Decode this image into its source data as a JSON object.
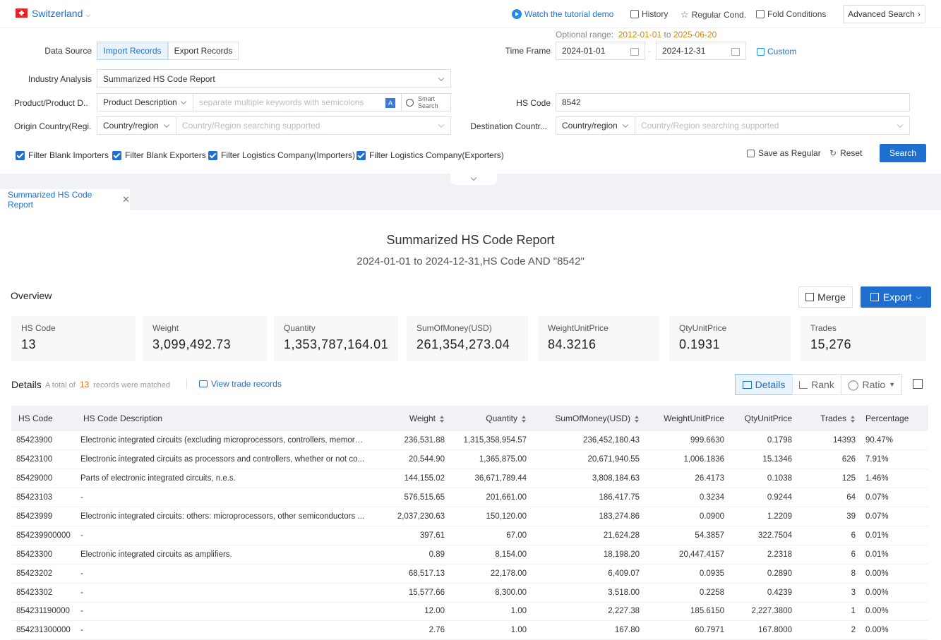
{
  "header": {
    "country": "Switzerland",
    "watch_demo": "Watch the tutorial demo",
    "history": "History",
    "regular_cond": "Regular Cond.",
    "fold_conditions": "Fold Conditions",
    "advanced_search": "Advanced Search"
  },
  "form": {
    "optional_range_label": "Optional range",
    "optional_range_start": "2012-01-01",
    "optional_range_to": "to",
    "optional_range_end": "2025-06-20",
    "data_source_label": "Data Source",
    "import_records": "Import Records",
    "export_records": "Export Records",
    "time_frame_label": "Time Frame",
    "date_start": "2024-01-01",
    "date_end": "2024-12-31",
    "custom": "Custom",
    "industry_label": "Industry Analysis",
    "industry_value": "Summarized HS Code Report",
    "product_label": "Product/Product D...",
    "product_mode": "Product Description",
    "product_placeholder": "separate multiple keywords with semicolons",
    "smart_search_1": "Smart",
    "smart_search_2": "Search",
    "hs_code_label": "HS Code",
    "hs_code_value": "8542",
    "origin_label": "Origin Country(Regi...",
    "origin_mode": "Country/region",
    "origin_placeholder": "Country/Region searching supported",
    "dest_label": "Destination Countr...",
    "dest_mode": "Country/region",
    "dest_placeholder": "Country/Region searching supported",
    "filters": [
      "Filter Blank Importers",
      "Filter Blank Exporters",
      "Filter Logistics Company(Importers)",
      "Filter Logistics Company(Exporters)"
    ],
    "save_regular": "Save as Regular",
    "reset": "Reset",
    "search": "Search"
  },
  "tab": {
    "label": "Summarized HS Code Report"
  },
  "report": {
    "title": "Summarized HS Code Report",
    "subtitle": "2024-01-01 to 2024-12-31,HS Code AND \"8542\"",
    "overview": "Overview",
    "merge": "Merge",
    "export": "Export",
    "cards": [
      {
        "label": "HS Code",
        "value": "13"
      },
      {
        "label": "Weight",
        "value": "3,099,492.73"
      },
      {
        "label": "Quantity",
        "value": "1,353,787,164.01"
      },
      {
        "label": "SumOfMoney(USD)",
        "value": "261,354,273.04"
      },
      {
        "label": "WeightUnitPrice",
        "value": "84.3216"
      },
      {
        "label": "QtyUnitPrice",
        "value": "0.1931"
      },
      {
        "label": "Trades",
        "value": "15,276"
      }
    ],
    "details": "Details",
    "total_pre": "A total of",
    "total_count": "13",
    "total_post": "records were matched",
    "view_trade": "View trade records",
    "view_details": "Details",
    "view_rank": "Rank",
    "view_ratio": "Ratio"
  },
  "table": {
    "headers": [
      "HS Code",
      "HS Code Description",
      "Weight",
      "Quantity",
      "SumOfMoney(USD)",
      "WeightUnitPrice",
      "QtyUnitPrice",
      "Trades",
      "Percentage"
    ],
    "rows": [
      [
        "85423900",
        "Electronic integrated circuits (excluding microprocessors, controllers, memory ...",
        "236,531.88",
        "1,315,358,954.57",
        "236,452,180.43",
        "999.6630",
        "0.1798",
        "14393",
        "90.47%"
      ],
      [
        "85423100",
        "Electronic integrated circuits as processors and controllers, whether or not co...",
        "20,544.90",
        "1,365,875.00",
        "20,671,940.55",
        "1,006.1836",
        "15.1346",
        "626",
        "7.91%"
      ],
      [
        "85429000",
        "Parts of electronic integrated circuits, n.e.s.",
        "144,155.02",
        "36,671,789.44",
        "3,808,184.63",
        "26.4173",
        "0.1038",
        "125",
        "1.46%"
      ],
      [
        "85423103",
        "-",
        "576,515.65",
        "201,661.00",
        "186,417.75",
        "0.3234",
        "0.9244",
        "64",
        "0.07%"
      ],
      [
        "85423999",
        "Electronic integrated circuits: others: microprocessors, other semiconductors ...",
        "2,037,230.63",
        "150,120.00",
        "183,274.86",
        "0.0900",
        "1.2209",
        "39",
        "0.07%"
      ],
      [
        "854239900000",
        "-",
        "397.61",
        "67.00",
        "21,624.28",
        "54.3857",
        "322.7504",
        "6",
        "0.01%"
      ],
      [
        "85423300",
        "Electronic integrated circuits as amplifiers.",
        "0.89",
        "8,154.00",
        "18,198.20",
        "20,447.4157",
        "2.2318",
        "6",
        "0.01%"
      ],
      [
        "85423202",
        "-",
        "68,517.13",
        "22,178.00",
        "6,409.07",
        "0.0935",
        "0.2890",
        "8",
        "0.00%"
      ],
      [
        "85423302",
        "-",
        "15,577.66",
        "8,300.00",
        "3,518.00",
        "0.2258",
        "0.4239",
        "3",
        "0.00%"
      ],
      [
        "854231190000",
        "-",
        "12.00",
        "1.00",
        "2,227.38",
        "185.6150",
        "2,227.3800",
        "1",
        "0.00%"
      ],
      [
        "854231300000",
        "-",
        "2.76",
        "1.00",
        "167.80",
        "60.7971",
        "167.8000",
        "2",
        "0.00%"
      ]
    ]
  }
}
